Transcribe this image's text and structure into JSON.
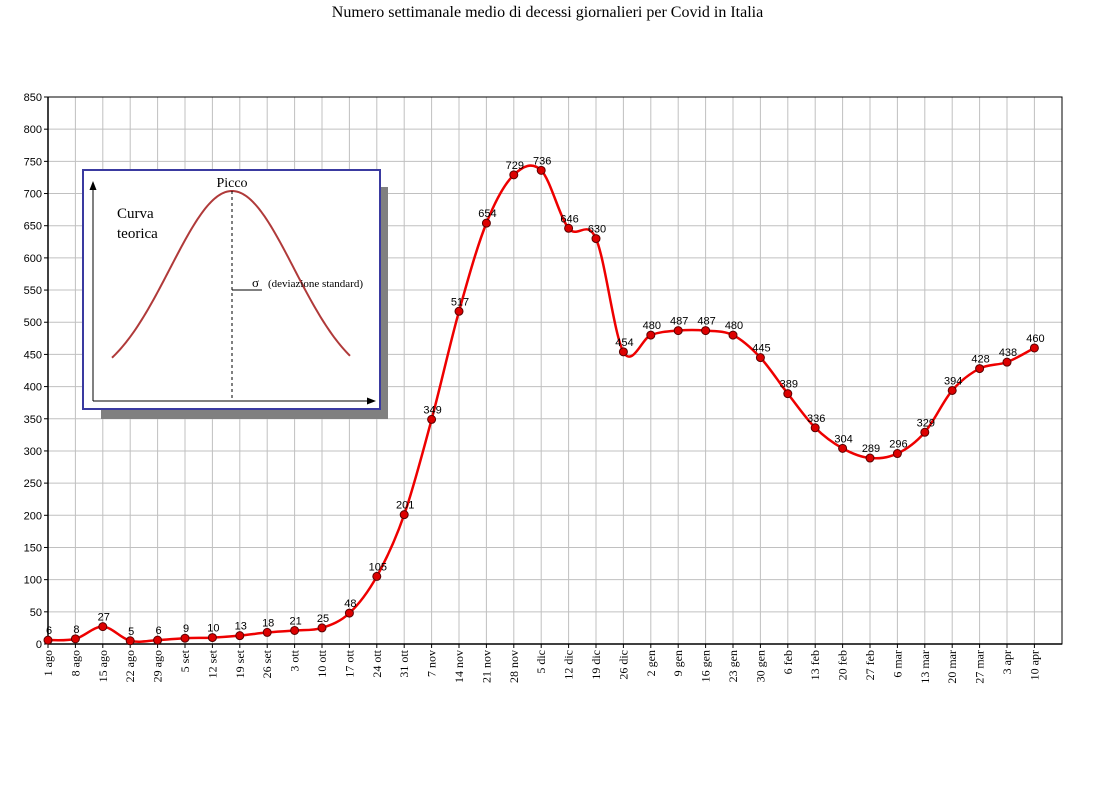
{
  "chart_data": {
    "type": "line",
    "title": "Numero settimanale medio di decessi giornalieri per Covid in Italia",
    "xlabel": "",
    "ylabel": "",
    "ylim": [
      0,
      850
    ],
    "yticks": [
      0,
      50,
      100,
      150,
      200,
      250,
      300,
      350,
      400,
      450,
      500,
      550,
      600,
      650,
      700,
      750,
      800,
      850
    ],
    "grid": true,
    "categories": [
      "1 ago",
      "8 ago",
      "15 ago",
      "22 ago",
      "29 ago",
      "5 set",
      "12 set",
      "19 set",
      "26 set",
      "3 ott",
      "10 ott",
      "17 ott",
      "24 ott",
      "31 ott",
      "7 nov",
      "14 nov",
      "21 nov",
      "28 nov",
      "5 dic",
      "12 dic",
      "19 dic",
      "26 dic",
      "2 gen",
      "9 gen",
      "16 gen",
      "23 gen",
      "30 gen",
      "6 feb",
      "13 feb",
      "20 feb",
      "27 feb",
      "6 mar",
      "13 mar",
      "20 mar",
      "27 mar",
      "3 apr",
      "10 apr"
    ],
    "values": [
      6,
      8,
      27,
      5,
      6,
      9,
      10,
      13,
      18,
      21,
      25,
      48,
      105,
      201,
      349,
      517,
      654,
      729,
      736,
      646,
      630,
      454,
      480,
      487,
      487,
      480,
      445,
      389,
      336,
      304,
      289,
      296,
      329,
      394,
      428,
      438,
      460
    ],
    "series_color": "#ee0000",
    "marker_color": "#dd0000"
  },
  "inset": {
    "curve_label": [
      "Curva",
      "teorica"
    ],
    "peak_label": "Picco",
    "sigma_symbol": "σ",
    "sigma_label": "(deviazione standard)",
    "curve_color": "#b03a3a",
    "border_color": "#3a3aa0"
  }
}
